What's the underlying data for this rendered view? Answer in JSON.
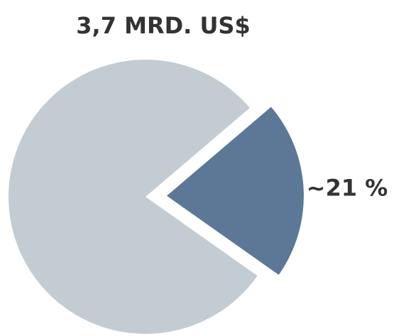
{
  "chart_data": {
    "type": "pie",
    "title": "3,7 MRD. US$",
    "values": [
      21,
      79
    ],
    "value_labels": [
      "~21 %",
      null
    ],
    "colors": [
      "#5c7896",
      "#c3ccd3"
    ]
  }
}
